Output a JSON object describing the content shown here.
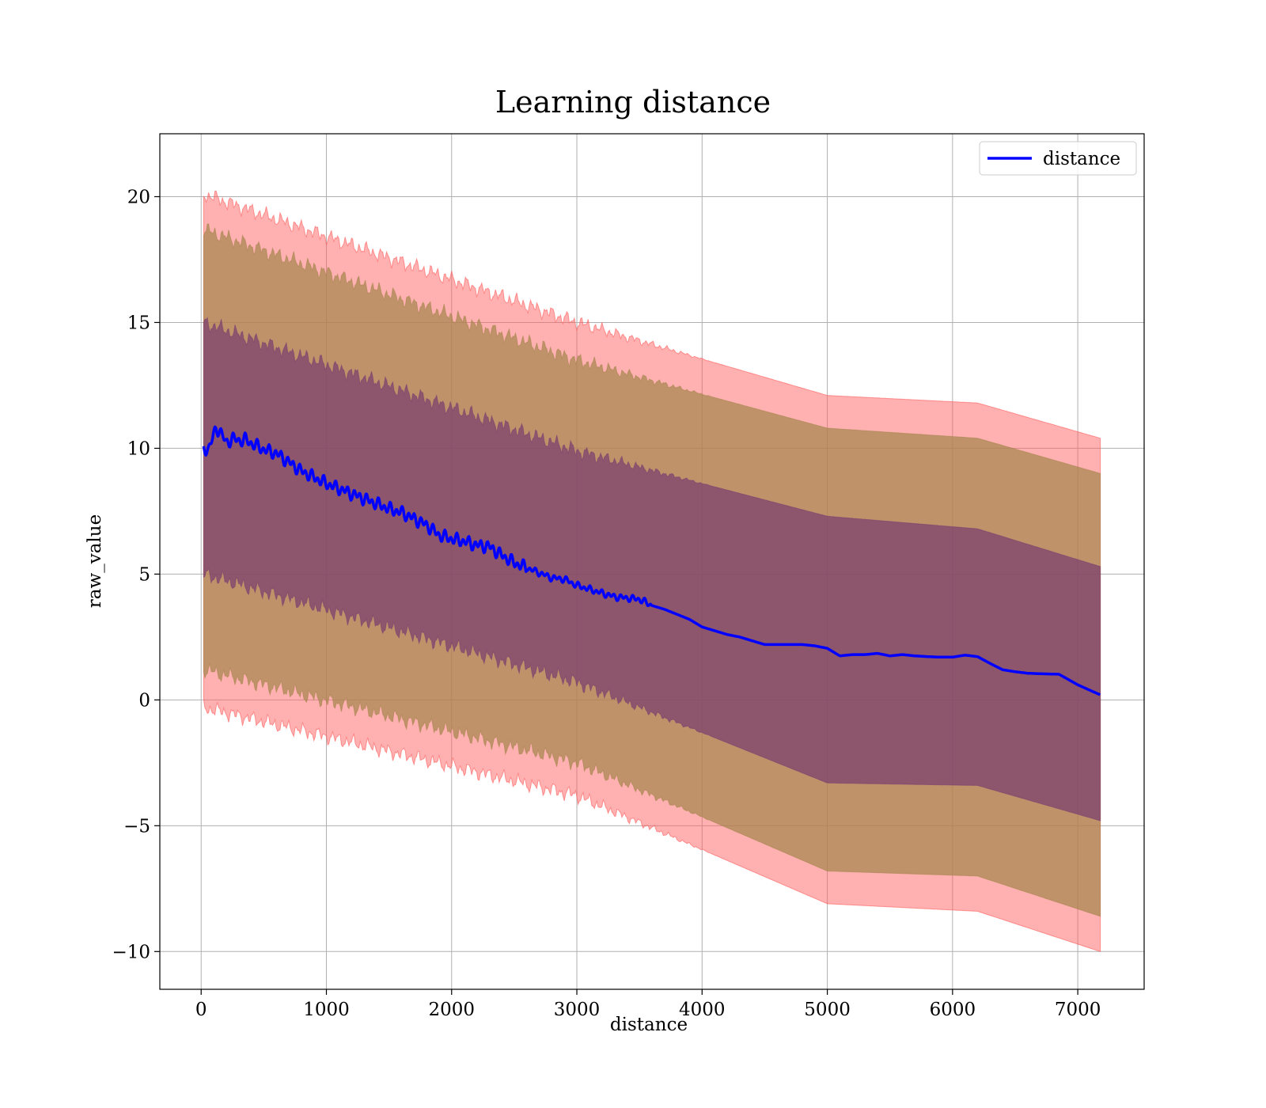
{
  "chart_data": {
    "type": "line",
    "title": "Learning distance",
    "xlabel": "distance",
    "ylabel": "raw_value",
    "xlim": [
      -330,
      7530
    ],
    "ylim": [
      -11.5,
      22.5
    ],
    "xticks": [
      0,
      1000,
      2000,
      3000,
      4000,
      5000,
      6000,
      7000
    ],
    "yticks": [
      -10,
      -5,
      0,
      5,
      10,
      15,
      20
    ],
    "xtick_labels": [
      "0",
      "1000",
      "2000",
      "3000",
      "4000",
      "5000",
      "6000",
      "7000"
    ],
    "ytick_labels": [
      "−10",
      "−5",
      "0",
      "5",
      "10",
      "15",
      "20"
    ],
    "grid": true,
    "legend": {
      "position": "top-right",
      "entries": [
        "distance"
      ]
    },
    "colors": {
      "line": "#0000ff",
      "outer_band": "#ff5a5a",
      "middle_band": "#a6864f",
      "inner_band": "#7a3f6f",
      "grid": "#b0b0b0"
    },
    "series": [
      {
        "name": "distance",
        "x": [
          20,
          60,
          100,
          120,
          150,
          200,
          250,
          300,
          350,
          400,
          500,
          600,
          700,
          800,
          900,
          1000,
          1100,
          1200,
          1300,
          1400,
          1500,
          1600,
          1700,
          1800,
          1900,
          2000,
          2100,
          2200,
          2300,
          2400,
          2500,
          2600,
          2700,
          2800,
          2900,
          3000,
          3100,
          3200,
          3300,
          3400,
          3500,
          3600,
          3700,
          3800,
          3900,
          4000,
          4100,
          4200,
          4300,
          4400,
          4500,
          4600,
          4700,
          4800,
          4900,
          5000,
          5100,
          5200,
          5300,
          5400,
          5500,
          5600,
          5700,
          5800,
          5900,
          6000,
          6100,
          6200,
          6300,
          6400,
          6500,
          6600,
          6700,
          6850,
          7000,
          7180
        ],
        "y": [
          9.95,
          10.0,
          10.5,
          10.8,
          10.7,
          10.2,
          10.4,
          10.3,
          10.35,
          10.2,
          9.95,
          9.8,
          9.45,
          9.1,
          8.85,
          8.6,
          8.4,
          8.2,
          8.0,
          7.8,
          7.6,
          7.45,
          7.2,
          6.95,
          6.55,
          6.4,
          6.3,
          6.15,
          6.1,
          5.75,
          5.45,
          5.25,
          5.05,
          4.85,
          4.8,
          4.55,
          4.4,
          4.25,
          4.1,
          4.05,
          4.0,
          3.75,
          3.6,
          3.4,
          3.2,
          2.9,
          2.75,
          2.6,
          2.5,
          2.35,
          2.2,
          2.2,
          2.2,
          2.2,
          2.15,
          2.05,
          1.75,
          1.8,
          1.8,
          1.85,
          1.75,
          1.8,
          1.75,
          1.72,
          1.7,
          1.7,
          1.78,
          1.72,
          1.45,
          1.2,
          1.12,
          1.06,
          1.04,
          1.02,
          0.6,
          0.2
        ]
      }
    ],
    "bands": [
      {
        "x": [
          20,
          3000,
          5000,
          6200,
          7180
        ],
        "lower": [
          -0.3,
          -3.8,
          -8.1,
          -8.4,
          -10.0
        ],
        "upper": [
          20.1,
          15.0,
          12.1,
          11.8,
          10.4
        ]
      },
      {
        "x": [
          20,
          3000,
          5000,
          6200,
          7180
        ],
        "lower": [
          1.2,
          -2.5,
          -6.8,
          -7.0,
          -8.6
        ],
        "upper": [
          18.7,
          13.5,
          10.8,
          10.4,
          9.0
        ]
      },
      {
        "x": [
          20,
          3000,
          5000,
          6200,
          7180
        ],
        "lower": [
          5.0,
          0.7,
          -3.3,
          -3.4,
          -4.8
        ],
        "upper": [
          15.0,
          9.9,
          7.3,
          6.8,
          5.3
        ]
      }
    ]
  }
}
